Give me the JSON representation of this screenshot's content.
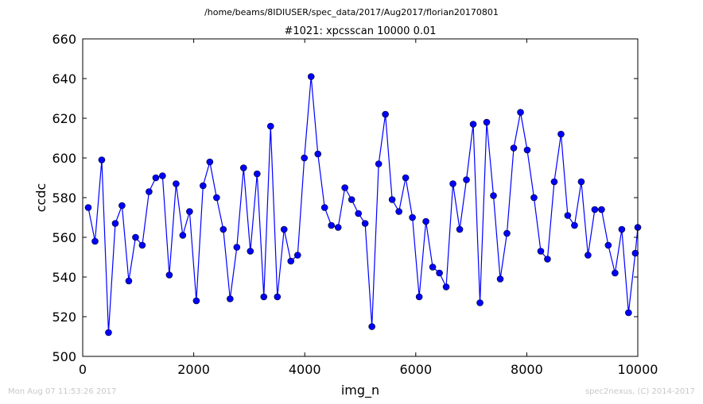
{
  "chart_data": {
    "type": "line",
    "suptitle": "/home/beams/8IDIUSER/spec_data/2017/Aug2017/florian20170801",
    "title": "#1021: xpcsscan 10000 0.01",
    "xlabel": "img_n",
    "ylabel": "ccdc",
    "xlim": [
      0,
      10000
    ],
    "ylim": [
      500,
      660
    ],
    "xticks": [
      "0",
      "2000",
      "4000",
      "6000",
      "8000",
      "10000"
    ],
    "yticks": [
      "500",
      "520",
      "540",
      "560",
      "580",
      "600",
      "620",
      "640",
      "660"
    ],
    "grid": false,
    "marker": "circle",
    "colors": {
      "line": "#0000ff",
      "marker": "#0000ff",
      "marker_edge": "#000000"
    },
    "series": [
      {
        "x": [
          100,
          222,
          343,
          465,
          587,
          708,
          830,
          952,
          1073,
          1195,
          1317,
          1438,
          1560,
          1682,
          1803,
          1925,
          2047,
          2168,
          2290,
          2412,
          2533,
          2655,
          2777,
          2898,
          3020,
          3142,
          3263,
          3385,
          3507,
          3628,
          3750,
          3872,
          3993,
          4115,
          4237,
          4358,
          4480,
          4602,
          4723,
          4845,
          4967,
          5088,
          5210,
          5332,
          5453,
          5575,
          5697,
          5818,
          5940,
          6062,
          6183,
          6305,
          6427,
          6548,
          6670,
          6792,
          6913,
          7035,
          7157,
          7278,
          7400,
          7522,
          7643,
          7765,
          7887,
          8008,
          8130,
          8252,
          8373,
          8495,
          8617,
          8738,
          8860,
          8982,
          9103,
          9225,
          9347,
          9468,
          9590,
          9712,
          9833,
          9955,
          10000
        ],
        "y": [
          575,
          558,
          599,
          512,
          567,
          576,
          538,
          560,
          556,
          583,
          590,
          591,
          541,
          587,
          561,
          573,
          528,
          586,
          598,
          580,
          564,
          529,
          555,
          595,
          553,
          592,
          530,
          616,
          530,
          564,
          548,
          551,
          600,
          641,
          602,
          575,
          566,
          565,
          585,
          579,
          572,
          567,
          515,
          597,
          622,
          579,
          573,
          590,
          570,
          530,
          568,
          545,
          542,
          535,
          587,
          564,
          589,
          617,
          527,
          618,
          581,
          539,
          562,
          605,
          623,
          604,
          580,
          553,
          549,
          588,
          612,
          571,
          566,
          588,
          551,
          574,
          574,
          556,
          542,
          564,
          522,
          552,
          565
        ]
      }
    ]
  },
  "footer": {
    "timestamp": "Mon Aug 07 11:53:26 2017",
    "credit": "spec2nexus, (C) 2014-2017"
  }
}
